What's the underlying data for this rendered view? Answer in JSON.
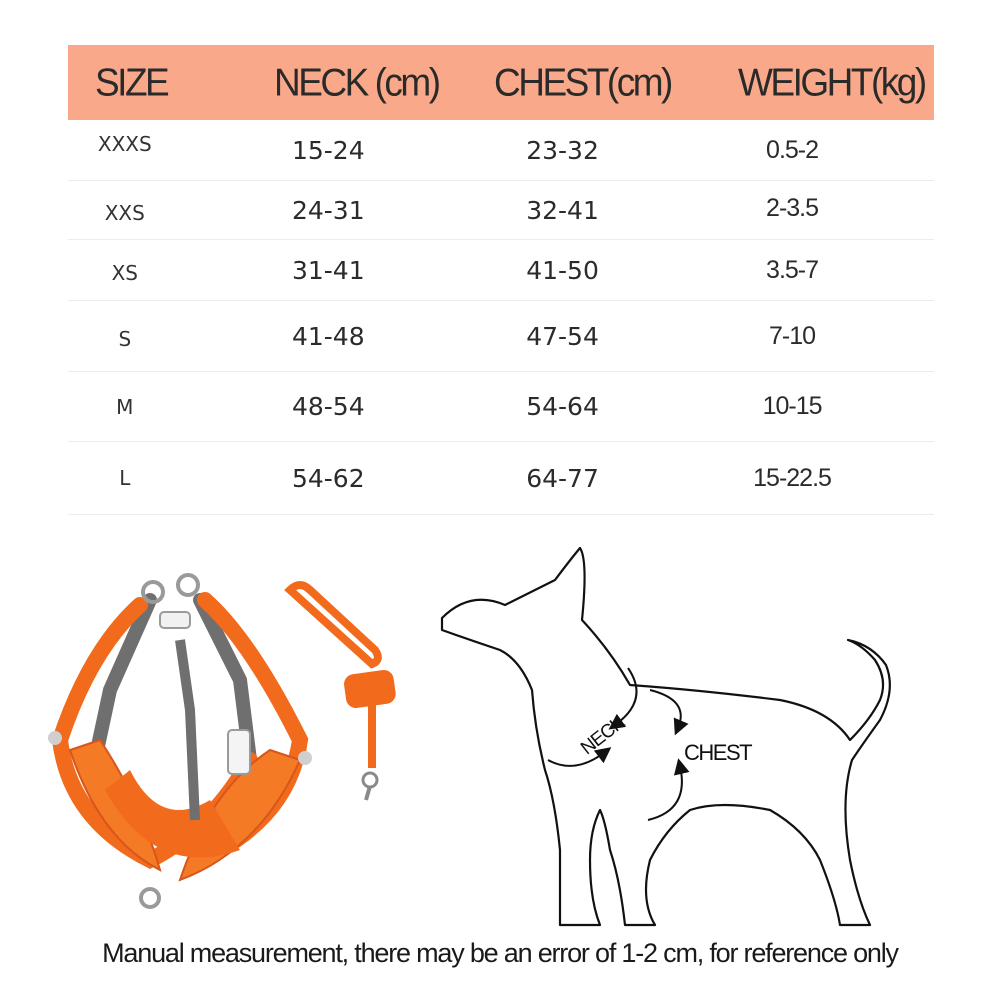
{
  "table": {
    "headers": [
      "SIZE",
      "NECK (cm)",
      "CHEST(cm)",
      "WEIGHT(kg)"
    ],
    "rows": [
      {
        "size": "XXXS",
        "neck": "15-24",
        "chest": "23-32",
        "weight": "0.5-2"
      },
      {
        "size": "XXS",
        "neck": "24-31",
        "chest": "32-41",
        "weight": "2-3.5"
      },
      {
        "size": "XS",
        "neck": "31-41",
        "chest": "41-50",
        "weight": "3.5-7"
      },
      {
        "size": "S",
        "neck": "41-48",
        "chest": "47-54",
        "weight": "7-10"
      },
      {
        "size": "M",
        "neck": "48-54",
        "chest": "54-64",
        "weight": "10-15"
      },
      {
        "size": "L",
        "neck": "54-62",
        "chest": "64-77",
        "weight": "15-22.5"
      }
    ]
  },
  "diagram": {
    "neck_label": "NECK",
    "chest_label": "CHEST"
  },
  "colors": {
    "header_bg": "#f9a98a",
    "harness_orange": "#f26b1d",
    "harness_grey": "#6f6f6f"
  },
  "footnote": "Manual measurement, there may be an error of 1-2 cm, for reference only"
}
